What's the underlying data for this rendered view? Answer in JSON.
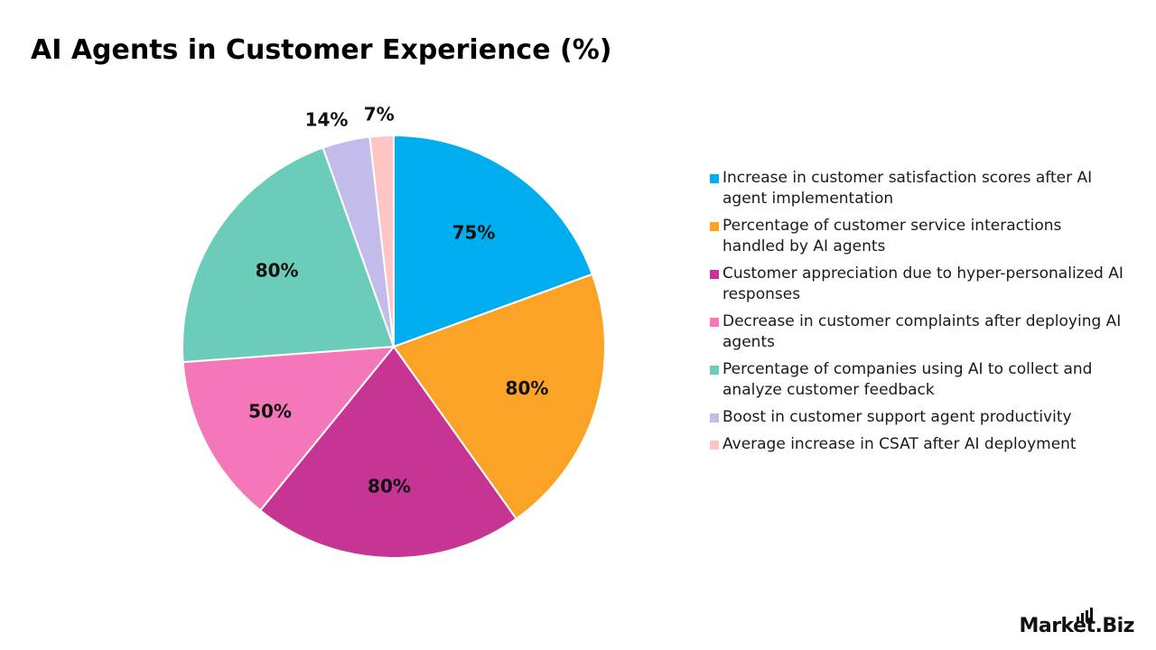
{
  "brand": "Market.Biz",
  "chart_data": {
    "type": "pie",
    "title": "AI Agents in Customer Experience (%)",
    "legend_position": "right",
    "slices": [
      {
        "label": "Increase in customer satisfaction scores after AI agent implementation",
        "value": 75,
        "display": "75%",
        "color": "#00AEEF"
      },
      {
        "label": "Percentage of customer service interactions handled by AI agents",
        "value": 80,
        "display": "80%",
        "color": "#FBA326"
      },
      {
        "label": "Customer appreciation due to hyper-personalized AI responses",
        "value": 80,
        "display": "80%",
        "color": "#C73594"
      },
      {
        "label": "Decrease in customer complaints after deploying AI agents",
        "value": 50,
        "display": "50%",
        "color": "#F478B9"
      },
      {
        "label": "Percentage of companies using AI to collect and analyze customer feedback",
        "value": 80,
        "display": "80%",
        "color": "#6BCCB9"
      },
      {
        "label": "Boost in customer support agent productivity",
        "value": 14,
        "display": "14%",
        "color": "#C3BBEA"
      },
      {
        "label": "Average increase in CSAT after AI deployment",
        "value": 7,
        "display": "7%",
        "color": "#FFC4C4"
      }
    ]
  }
}
